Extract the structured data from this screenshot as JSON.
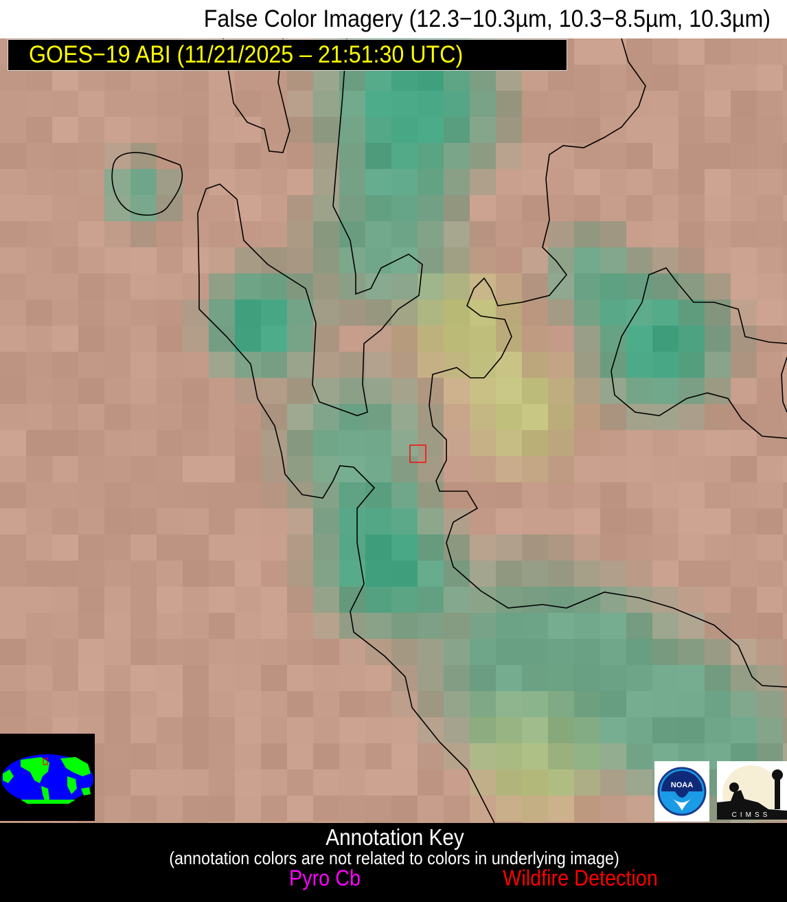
{
  "header": {
    "title": "False Color Imagery (12.3−10.3µm, 10.3−8.5µm, 10.3µm)"
  },
  "label": {
    "satellite": "GOES−19 ABI (11/21/2025 – 21:51:30 UTC)",
    "color": "#ffff00"
  },
  "imagery": {
    "palette": {
      "pink": "#c49a88",
      "green": "#6ea588",
      "yellow": "#c2c27e",
      "teal": "#45a583"
    },
    "contour_color": "#000000",
    "marker_color": "#ff0000"
  },
  "inset": {
    "ocean": "#0000ff",
    "land": "#00ff00",
    "marker": "#ff0000"
  },
  "logos": {
    "noaa": "NOAA",
    "cimss": "CIMSS"
  },
  "footer": {
    "title": "Annotation Key",
    "subtitle": "(annotation colors are not related to colors in underlying image)",
    "items": [
      {
        "label": "Pyro Cb",
        "color": "#ff00ff"
      },
      {
        "label": "Wildfire Detection",
        "color": "#ff0000"
      }
    ]
  }
}
